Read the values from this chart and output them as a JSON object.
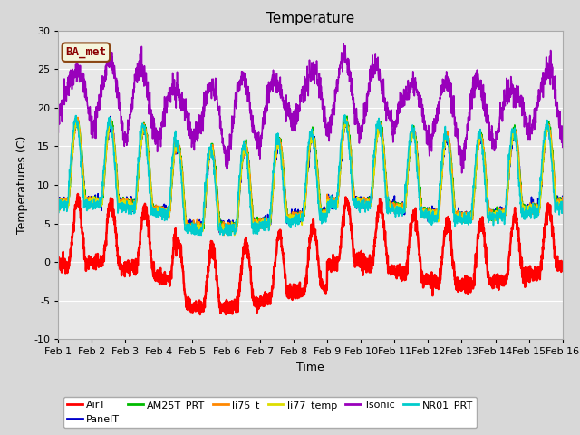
{
  "title": "Temperature",
  "xlabel": "Time",
  "ylabel": "Temperatures (C)",
  "ylim": [
    -10,
    30
  ],
  "xlim": [
    0,
    15
  ],
  "xtick_labels": [
    "Feb 1",
    "Feb 2",
    "Feb 3",
    "Feb 4",
    "Feb 5",
    "Feb 6",
    "Feb 7",
    "Feb 8",
    "Feb 9",
    "Feb 10",
    "Feb 11",
    "Feb 12",
    "Feb 13",
    "Feb 14",
    "Feb 15",
    "Feb 16"
  ],
  "ytick_values": [
    -10,
    -5,
    0,
    5,
    10,
    15,
    20,
    25,
    30
  ],
  "series_names": [
    "AirT",
    "PanelT",
    "AM25T_PRT",
    "li75_t",
    "li77_temp",
    "Tsonic",
    "NR01_PRT"
  ],
  "series_colors": [
    "#ff0000",
    "#0000cc",
    "#00bb00",
    "#ff8800",
    "#dddd00",
    "#9900bb",
    "#00cccc"
  ],
  "annotation_text": "BA_met",
  "background_color": "#e8e8e8",
  "grid_color": "#ffffff",
  "title_fontsize": 11,
  "axis_fontsize": 9,
  "tick_fontsize": 8,
  "legend_fontsize": 8,
  "figsize": [
    6.4,
    4.8
  ],
  "dpi": 100
}
